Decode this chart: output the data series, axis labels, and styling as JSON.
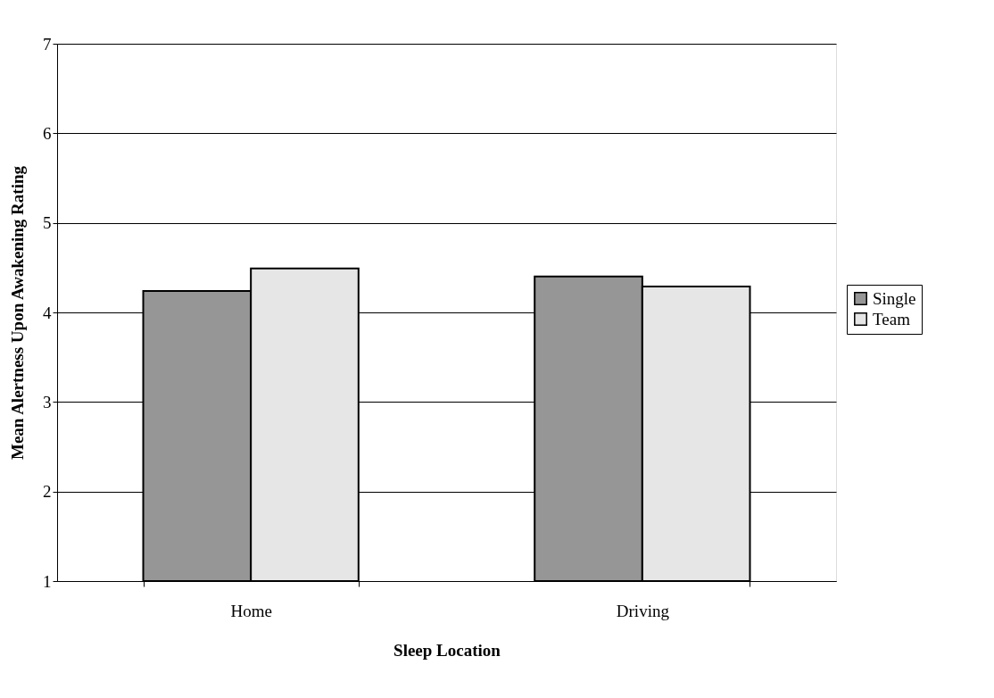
{
  "chart_data": {
    "type": "bar",
    "xlabel": "Sleep Location",
    "ylabel": "Mean Alertness Upon Awakening Rating",
    "categories": [
      "Home",
      "Driving"
    ],
    "series": [
      {
        "name": "Single",
        "color": "#969696",
        "values": [
          4.24,
          4.4
        ]
      },
      {
        "name": "Team",
        "color": "#e6e6e6",
        "values": [
          4.49,
          4.29
        ]
      }
    ],
    "ylim": [
      1,
      7
    ],
    "yticks": [
      1,
      2,
      3,
      4,
      5,
      6,
      7
    ],
    "grid": "y",
    "legend": "right"
  }
}
